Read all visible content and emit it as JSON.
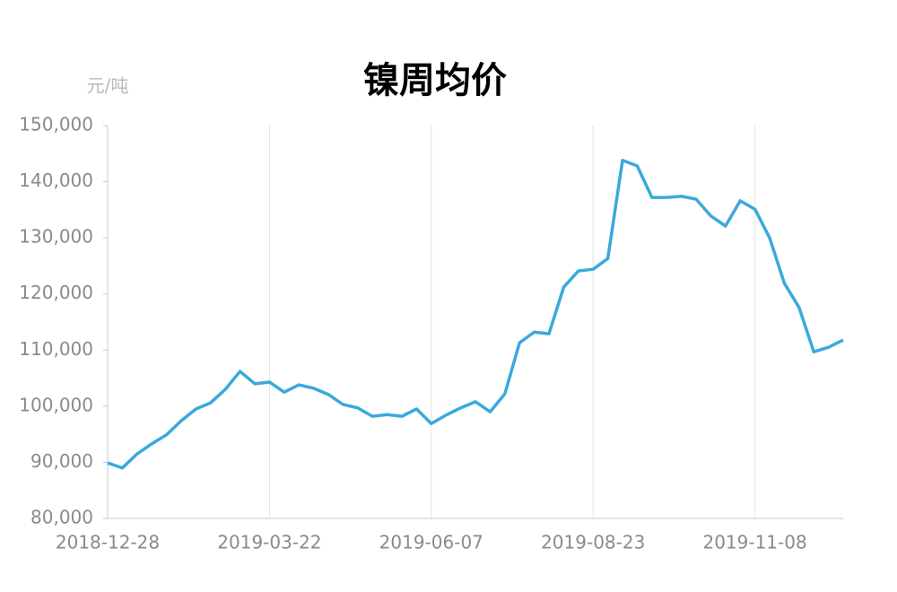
{
  "chart_data": {
    "type": "line",
    "title": "镍周均价",
    "y_label": "元/吨",
    "categories": [
      "2018-12-28",
      null,
      null,
      null,
      null,
      null,
      null,
      null,
      null,
      null,
      null,
      "2019-03-22",
      null,
      null,
      null,
      null,
      null,
      null,
      null,
      null,
      null,
      null,
      "2019-06-07",
      null,
      null,
      null,
      null,
      null,
      null,
      null,
      null,
      null,
      null,
      "2019-08-23",
      null,
      null,
      null,
      null,
      null,
      null,
      null,
      null,
      null,
      null,
      "2019-11-08",
      null,
      null,
      null,
      null,
      null,
      null
    ],
    "values": [
      89900,
      89000,
      91500,
      93300,
      94900,
      97400,
      99500,
      100600,
      103000,
      106200,
      104000,
      104300,
      102500,
      103800,
      103200,
      102100,
      100300,
      99700,
      98200,
      98500,
      98200,
      99500,
      96900,
      98400,
      99700,
      100800,
      99000,
      102200,
      111300,
      113200,
      112900,
      121200,
      124100,
      124400,
      126300,
      143800,
      142800,
      137200,
      137200,
      137400,
      136900,
      133900,
      132100,
      136600,
      135100,
      130000,
      121900,
      117600,
      109700,
      110500,
      111800
    ],
    "color": "#3aa9dc",
    "ylim": [
      80000,
      150000
    ],
    "yticks": [
      {
        "value": 80000,
        "label": "80,000"
      },
      {
        "value": 90000,
        "label": "90,000"
      },
      {
        "value": 100000,
        "label": "100,000"
      },
      {
        "value": 110000,
        "label": "110,000"
      },
      {
        "value": 120000,
        "label": "120,000"
      },
      {
        "value": 130000,
        "label": "130,000"
      },
      {
        "value": 140000,
        "label": "140,000"
      },
      {
        "value": 150000,
        "label": "150,000"
      }
    ],
    "grid": true
  }
}
